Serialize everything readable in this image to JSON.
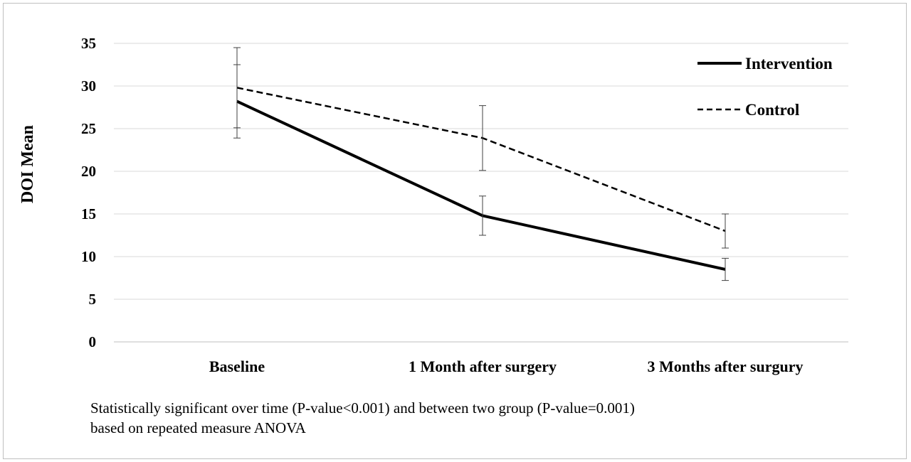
{
  "chart_data": {
    "type": "line",
    "title": "",
    "xlabel": "",
    "ylabel": "DOI Mean",
    "ylim": [
      0,
      35
    ],
    "yticks": [
      0,
      5,
      10,
      15,
      20,
      25,
      30,
      35
    ],
    "categories": [
      "Baseline",
      "1 Month after surgery",
      "3 Months after surgury"
    ],
    "grid": true,
    "legend_position": "top-right",
    "series": [
      {
        "name": "Intervention",
        "style": "solid",
        "color": "#000000",
        "values": [
          28.2,
          14.8,
          8.5
        ],
        "error": [
          4.3,
          2.3,
          1.3
        ]
      },
      {
        "name": "Control",
        "style": "dashed",
        "color": "#000000",
        "values": [
          29.8,
          23.9,
          13.0
        ],
        "error": [
          4.7,
          3.8,
          2.0
        ]
      }
    ]
  },
  "note": {
    "line1": "Statistically  significant over time (P-value<0.001) and between two group (P-value=0.001)",
    "line2": "based on repeated measure ANOVA"
  }
}
